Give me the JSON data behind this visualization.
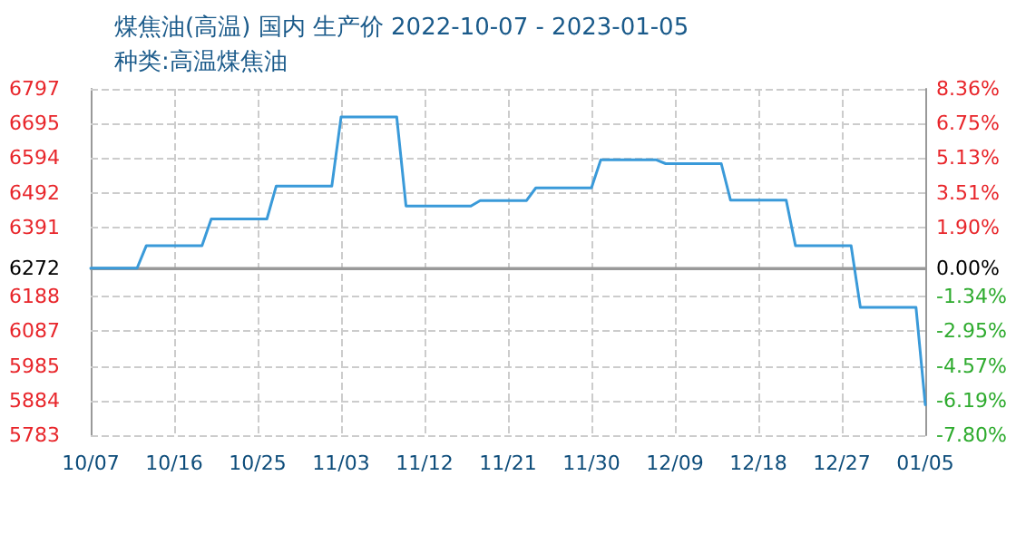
{
  "chart_data": {
    "type": "line",
    "title": "煤焦油(高温) 国内 生产价 2022-10-07 - 2023-01-05",
    "subtitle": "种类:高温煤焦油",
    "x": [
      "2022-10-07",
      "2022-10-12",
      "2022-10-13",
      "2022-10-19",
      "2022-10-20",
      "2022-10-26",
      "2022-10-27",
      "2022-11-02",
      "2022-11-03",
      "2022-11-09",
      "2022-11-10",
      "2022-11-17",
      "2022-11-18",
      "2022-11-23",
      "2022-11-24",
      "2022-11-30",
      "2022-12-01",
      "2022-12-07",
      "2022-12-08",
      "2022-12-14",
      "2022-12-15",
      "2022-12-21",
      "2022-12-22",
      "2022-12-28",
      "2022-12-29",
      "2023-01-04",
      "2023-01-05"
    ],
    "series": [
      {
        "color": "#3a9ad9",
        "values": [
          6272,
          6272,
          6338,
          6338,
          6416,
          6416,
          6512,
          6512,
          6715,
          6715,
          6454,
          6454,
          6470,
          6470,
          6507,
          6507,
          6589,
          6589,
          6578,
          6578,
          6471,
          6471,
          6338,
          6338,
          6157,
          6157,
          5872
        ]
      }
    ],
    "xlim": [
      "2022-10-07",
      "2023-01-05"
    ],
    "xticks": [
      {
        "value": "2022-10-07",
        "label": "10/07"
      },
      {
        "value": "2022-10-16",
        "label": "10/16"
      },
      {
        "value": "2022-10-25",
        "label": "10/25"
      },
      {
        "value": "2022-11-03",
        "label": "11/03"
      },
      {
        "value": "2022-11-12",
        "label": "11/12"
      },
      {
        "value": "2022-11-21",
        "label": "11/21"
      },
      {
        "value": "2022-11-30",
        "label": "11/30"
      },
      {
        "value": "2022-12-09",
        "label": "12/09"
      },
      {
        "value": "2022-12-18",
        "label": "12/18"
      },
      {
        "value": "2022-12-27",
        "label": "12/27"
      },
      {
        "value": "2023-01-05",
        "label": "01/05"
      }
    ],
    "ylim": [
      5783,
      6797
    ],
    "yticks": [
      5783,
      5884,
      5985,
      6087,
      6188,
      6272,
      6391,
      6492,
      6594,
      6695,
      6797
    ],
    "y2lim": [
      -7.8,
      8.36
    ],
    "y2ticks": [
      {
        "value": -7.8,
        "label": "-7.80%"
      },
      {
        "value": -6.19,
        "label": "-6.19%"
      },
      {
        "value": -4.57,
        "label": "-4.57%"
      },
      {
        "value": -2.95,
        "label": "-2.95%"
      },
      {
        "value": -1.34,
        "label": "-1.34%"
      },
      {
        "value": 0,
        "label": "0.00%"
      },
      {
        "value": 1.9,
        "label": "1.90%"
      },
      {
        "value": 3.51,
        "label": "3.51%"
      },
      {
        "value": 5.13,
        "label": "5.13%"
      },
      {
        "value": 6.75,
        "label": "6.75%"
      },
      {
        "value": 8.36,
        "label": "8.36%"
      }
    ],
    "ref_lines": [
      {
        "axis": "y",
        "value": 6272,
        "color": "#999999"
      }
    ],
    "grid": true,
    "marker": "none",
    "line_style": "solid"
  }
}
